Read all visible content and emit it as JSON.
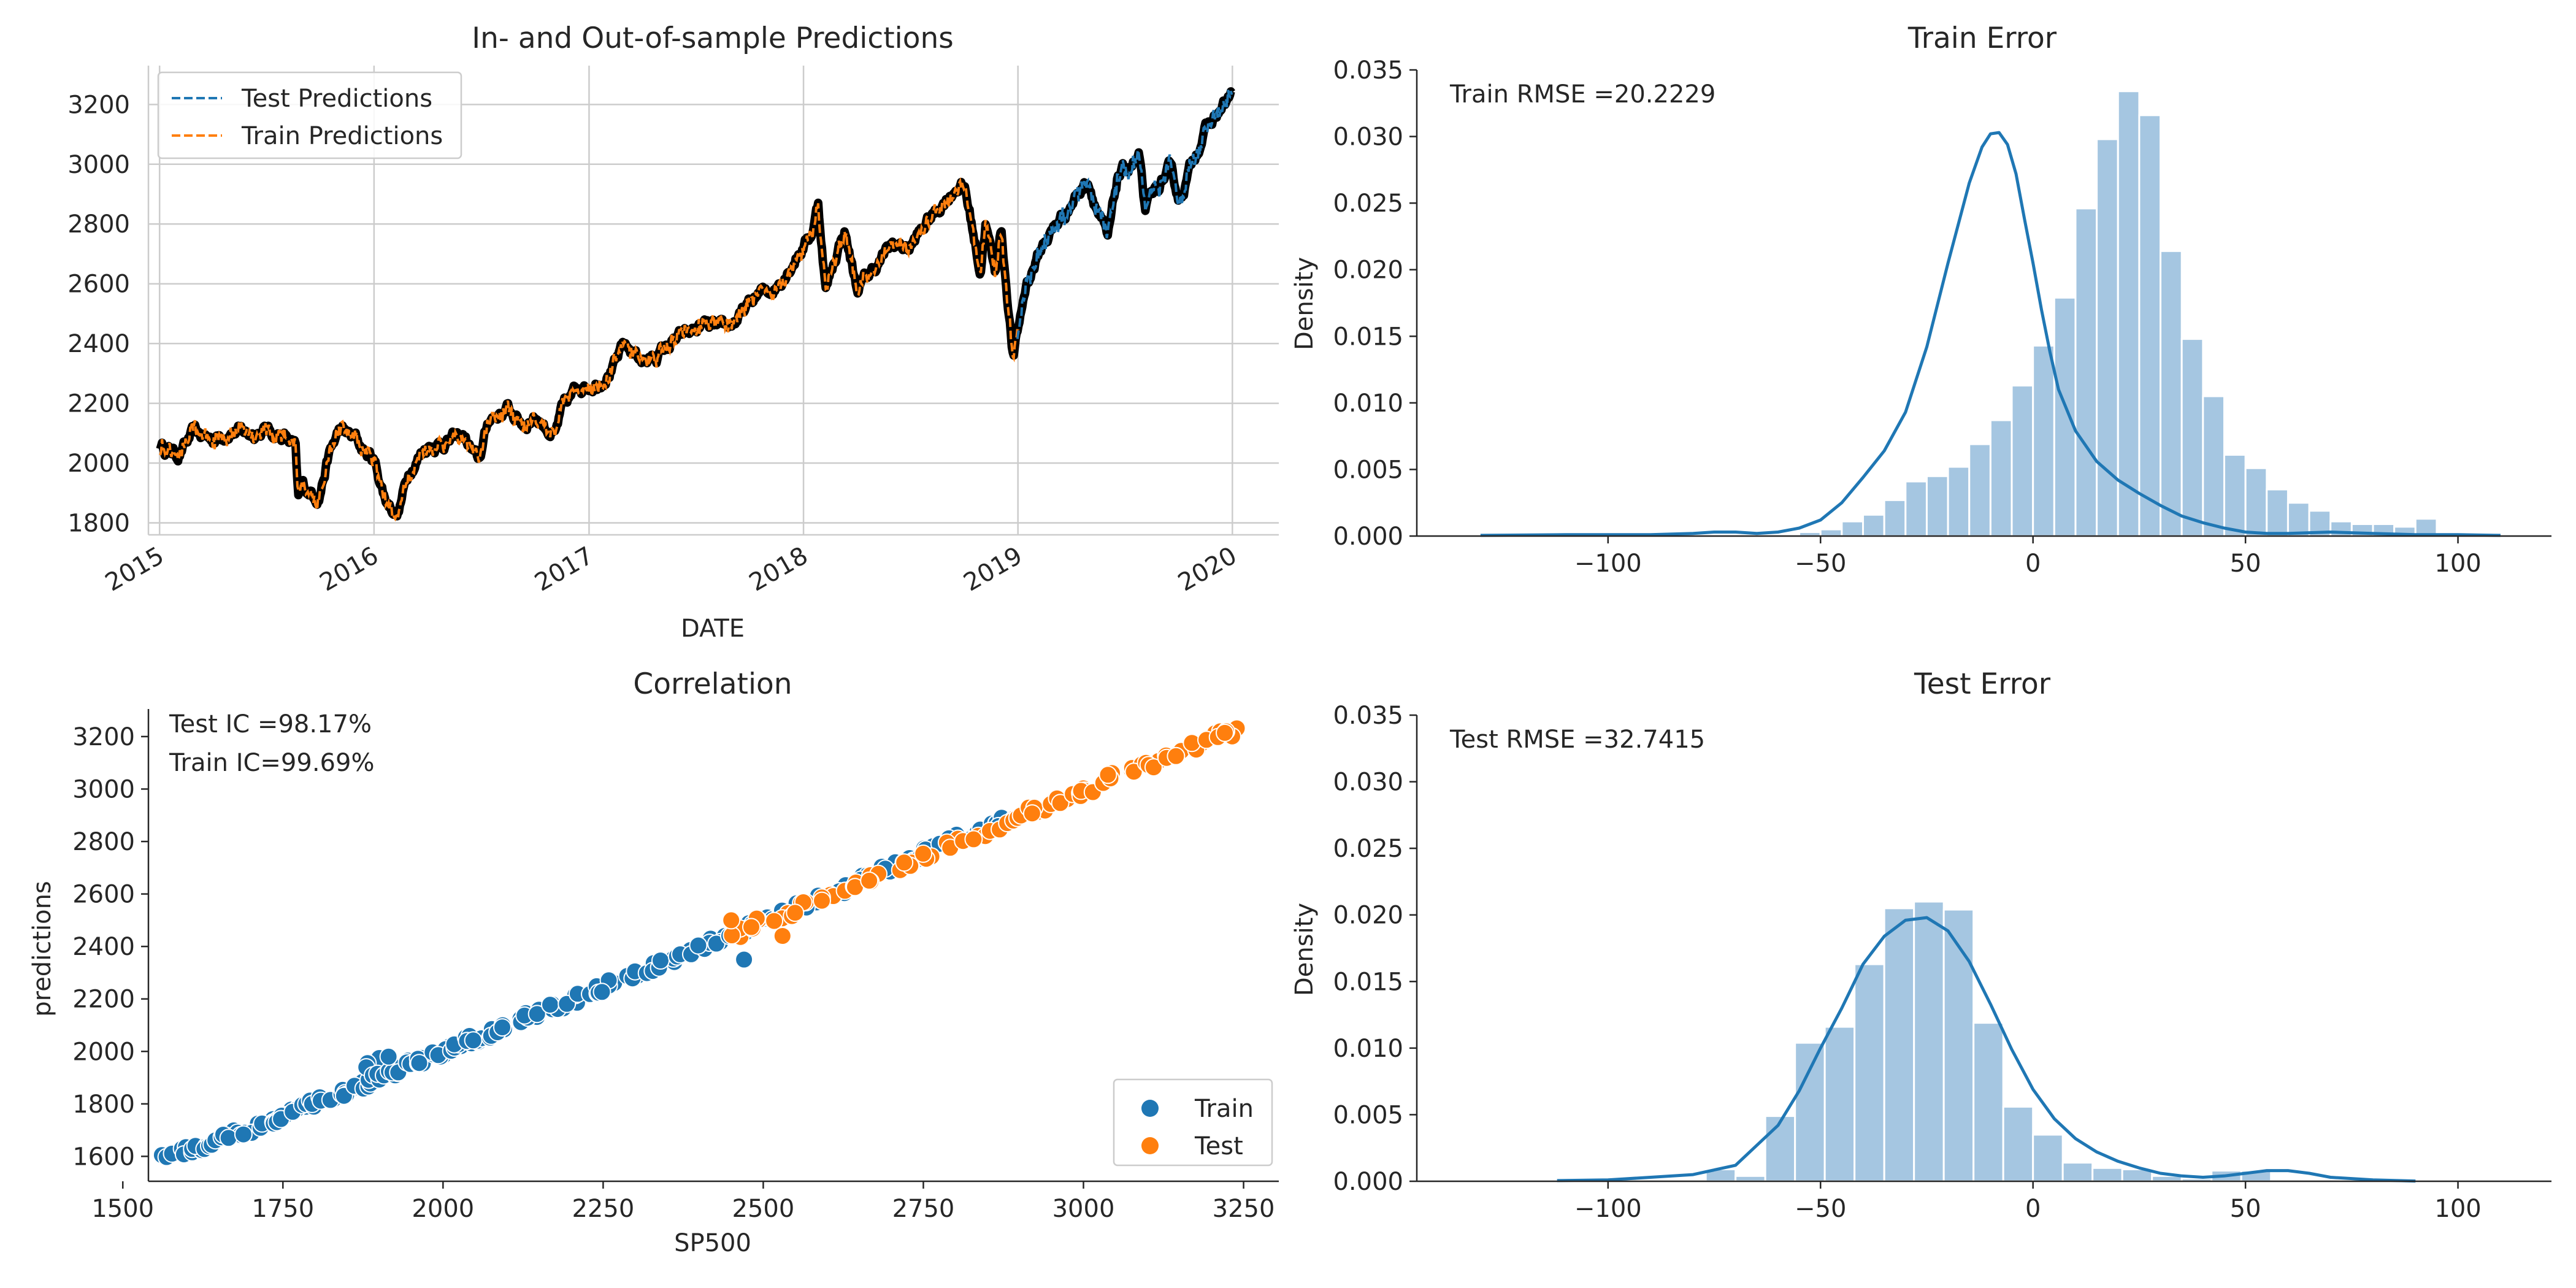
{
  "chart_data": [
    {
      "type": "line",
      "title": "In- and Out-of-sample Predictions",
      "xlabel": "DATE",
      "ylabel": "",
      "x_range": [
        "2015-01-02",
        "2019-12-31"
      ],
      "ylim": [
        1760,
        3330
      ],
      "xticks": [
        "2015",
        "2016",
        "2017",
        "2018",
        "2019",
        "2020"
      ],
      "yticks": [
        1800,
        2000,
        2200,
        2400,
        2600,
        2800,
        3000,
        3200
      ],
      "grid": true,
      "legend_position": "top-left",
      "test_start": "2019-01-02",
      "series": [
        {
          "name": "Test Predictions",
          "color": "#1f77b4",
          "style": "dashed"
        },
        {
          "name": "Train Predictions",
          "color": "#ff7f0e",
          "style": "dashed"
        }
      ],
      "actual": {
        "color": "#000000",
        "x": [
          "2015-01-02",
          "2015-02-01",
          "2015-03-01",
          "2015-04-01",
          "2015-05-01",
          "2015-06-01",
          "2015-07-01",
          "2015-08-01",
          "2015-08-20",
          "2015-08-25",
          "2015-09-01",
          "2015-09-29",
          "2015-10-15",
          "2015-11-03",
          "2015-12-01",
          "2015-12-15",
          "2016-01-01",
          "2016-01-20",
          "2016-02-11",
          "2016-03-01",
          "2016-04-01",
          "2016-05-01",
          "2016-06-01",
          "2016-06-27",
          "2016-07-15",
          "2016-08-15",
          "2016-09-12",
          "2016-10-01",
          "2016-11-04",
          "2016-11-15",
          "2016-12-15",
          "2017-01-15",
          "2017-02-15",
          "2017-03-01",
          "2017-04-13",
          "2017-05-15",
          "2017-06-15",
          "2017-07-15",
          "2017-08-15",
          "2017-09-15",
          "2017-10-15",
          "2017-11-15",
          "2017-12-15",
          "2018-01-15",
          "2018-01-26",
          "2018-02-08",
          "2018-03-01",
          "2018-03-12",
          "2018-04-02",
          "2018-05-01",
          "2018-06-01",
          "2018-07-01",
          "2018-08-01",
          "2018-09-20",
          "2018-10-03",
          "2018-10-29",
          "2018-11-07",
          "2018-11-23",
          "2018-12-03",
          "2018-12-24",
          "2019-01-15",
          "2019-02-15",
          "2019-03-15",
          "2019-04-30",
          "2019-05-15",
          "2019-06-03",
          "2019-06-20",
          "2019-07-26",
          "2019-08-05",
          "2019-08-15",
          "2019-09-15",
          "2019-10-03",
          "2019-10-30",
          "2019-11-15",
          "2019-12-31"
        ],
        "y": [
          2058,
          2030,
          2100,
          2080,
          2110,
          2100,
          2110,
          2090,
          2050,
          1870,
          1920,
          1890,
          2020,
          2110,
          2080,
          2040,
          2010,
          1880,
          1830,
          1980,
          2060,
          2070,
          2090,
          2000,
          2150,
          2180,
          2130,
          2160,
          2090,
          2170,
          2260,
          2270,
          2330,
          2390,
          2340,
          2390,
          2430,
          2460,
          2440,
          2490,
          2560,
          2590,
          2680,
          2770,
          2870,
          2580,
          2720,
          2780,
          2580,
          2650,
          2730,
          2720,
          2810,
          2930,
          2920,
          2640,
          2810,
          2630,
          2790,
          2350,
          2600,
          2740,
          2820,
          2950,
          2860,
          2740,
          2960,
          3020,
          2840,
          2880,
          2980,
          2880,
          3040,
          3110,
          3230
        ]
      },
      "test_prediction_color": "#1f77b4",
      "train_prediction_color": "#ff7f0e"
    },
    {
      "type": "histogram",
      "title": "Train Error",
      "xlabel": "",
      "ylabel": "Density",
      "xlim": [
        -145,
        122
      ],
      "ylim": [
        0,
        0.035
      ],
      "xticks": [
        -100,
        -50,
        0,
        50,
        100
      ],
      "yticks": [
        "0.000",
        "0.005",
        "0.010",
        "0.015",
        "0.020",
        "0.025",
        "0.030",
        "0.035"
      ],
      "annotation": "Train RMSE =20.2229",
      "bin_width": 5,
      "bins_start": -55,
      "densities": [
        0.0003,
        0.0005,
        0.0011,
        0.0016,
        0.0027,
        0.0041,
        0.0045,
        0.0052,
        0.0069,
        0.0087,
        0.0113,
        0.0143,
        0.0179,
        0.0246,
        0.0298,
        0.0334,
        0.0316,
        0.0214,
        0.0148,
        0.0105,
        0.0061,
        0.0051,
        0.0035,
        0.0025,
        0.0019,
        0.0011,
        0.0009,
        0.0009,
        0.0007,
        0.0013
      ],
      "kde": {
        "color": "#1f77b4",
        "x": [
          -130,
          -110,
          -90,
          -80,
          -75,
          -70,
          -65,
          -60,
          -55,
          -50,
          -45,
          -40,
          -35,
          -30,
          -25,
          -20,
          -15,
          -12,
          -10,
          -8,
          -6,
          -4,
          -2,
          0,
          2,
          4,
          6,
          10,
          15,
          20,
          25,
          30,
          35,
          40,
          45,
          50,
          55,
          60,
          70,
          80,
          90,
          100,
          110
        ],
        "y": [
          5e-05,
          0.0001,
          0.0001,
          0.0002,
          0.0003,
          0.0003,
          0.0002,
          0.0003,
          0.0006,
          0.0012,
          0.0025,
          0.0044,
          0.0064,
          0.0093,
          0.0142,
          0.0205,
          0.0265,
          0.0292,
          0.0302,
          0.0303,
          0.0294,
          0.0272,
          0.0238,
          0.0205,
          0.017,
          0.0138,
          0.011,
          0.0079,
          0.0056,
          0.0042,
          0.0032,
          0.0023,
          0.0015,
          0.001,
          0.0006,
          0.0003,
          0.0002,
          0.0002,
          0.0003,
          0.0002,
          0.0001,
          0.0001,
          5e-05
        ]
      }
    },
    {
      "type": "scatter",
      "title": "Correlation",
      "xlabel": "SP500",
      "ylabel": "predictions",
      "xlim": [
        1540,
        3305
      ],
      "ylim": [
        1505,
        3305
      ],
      "xticks": [
        1500,
        1750,
        2000,
        2250,
        2500,
        2750,
        3000,
        3250
      ],
      "yticks": [
        1600,
        1800,
        2000,
        2200,
        2400,
        2600,
        2800,
        3000,
        3200
      ],
      "legend_position": "lower-right",
      "annotations": [
        "Test IC =98.17%",
        "Train IC=99.69%"
      ],
      "series": [
        {
          "name": "Train",
          "color": "#1f77b4",
          "x": [
            1575,
            1590,
            1610,
            1625,
            1640,
            1660,
            1680,
            1700,
            1720,
            1745,
            1760,
            1780,
            1800,
            1820,
            1840,
            1860,
            1880,
            1890,
            1900,
            1915,
            1930,
            1945,
            1960,
            1975,
            1990,
            2005,
            2020,
            2040,
            2060,
            2080,
            2100,
            2120,
            2140,
            2160,
            2180,
            2200,
            2230,
            2260,
            2290,
            2320,
            2350,
            2380,
            2410,
            2440,
            2470,
            2500,
            2540,
            2580,
            2620,
            2660,
            2700,
            2730,
            2760,
            2790,
            2820,
            2850,
            2880
          ],
          "y": [
            1600,
            1610,
            1615,
            1635,
            1650,
            1670,
            1690,
            1700,
            1715,
            1745,
            1765,
            1790,
            1805,
            1820,
            1835,
            1860,
            1880,
            1950,
            1900,
            1920,
            1930,
            1950,
            1965,
            1975,
            1990,
            2005,
            2020,
            2040,
            2055,
            2075,
            2095,
            2115,
            2140,
            2155,
            2175,
            2195,
            2225,
            2255,
            2285,
            2315,
            2345,
            2375,
            2405,
            2435,
            2465,
            2505,
            2540,
            2575,
            2615,
            2660,
            2700,
            2730,
            2765,
            2800,
            2820,
            2850,
            2880
          ]
        },
        {
          "name": "Test",
          "color": "#ff7f0e",
          "x": [
            2450,
            2490,
            2530,
            2560,
            2600,
            2640,
            2680,
            2720,
            2760,
            2800,
            2840,
            2880,
            2900,
            2930,
            2960,
            2990,
            3010,
            3040,
            3080,
            3110,
            3140,
            3170,
            3200,
            3230
          ],
          "y": [
            2440,
            2490,
            2520,
            2550,
            2590,
            2630,
            2670,
            2710,
            2750,
            2790,
            2830,
            2870,
            2900,
            2920,
            2950,
            2980,
            3000,
            3040,
            3070,
            3100,
            3130,
            3160,
            3190,
            3210
          ]
        }
      ],
      "extra_points": [
        {
          "series": "Train",
          "x": 2470,
          "y": 2350
        },
        {
          "series": "Train",
          "x": 1915,
          "y": 1980
        },
        {
          "series": "Test",
          "x": 2530,
          "y": 2440
        },
        {
          "series": "Test",
          "x": 2450,
          "y": 2500
        }
      ]
    },
    {
      "type": "histogram",
      "title": "Test Error",
      "xlabel": "",
      "ylabel": "Density",
      "xlim": [
        -145,
        122
      ],
      "ylim": [
        0,
        0.035
      ],
      "xticks": [
        -100,
        -50,
        0,
        50,
        100
      ],
      "yticks": [
        "0.000",
        "0.005",
        "0.010",
        "0.015",
        "0.020",
        "0.025",
        "0.030",
        "0.035"
      ],
      "annotation": "Test RMSE =32.7415",
      "bin_width": 7,
      "bins_start": -77,
      "densities": [
        0.0009,
        0.0004,
        0.0049,
        0.0104,
        0.0116,
        0.0163,
        0.0205,
        0.021,
        0.0204,
        0.0119,
        0.0056,
        0.0035,
        0.0014,
        0.001,
        0.0009,
        0.0004,
        0.0002,
        0.0008,
        0.0008
      ],
      "kde": {
        "color": "#1f77b4",
        "x": [
          -112,
          -100,
          -90,
          -80,
          -70,
          -60,
          -55,
          -50,
          -45,
          -40,
          -35,
          -30,
          -25,
          -20,
          -15,
          -10,
          -5,
          0,
          5,
          10,
          15,
          20,
          25,
          30,
          35,
          40,
          45,
          50,
          55,
          60,
          65,
          70,
          80,
          90
        ],
        "y": [
          5e-05,
          0.0001,
          0.0003,
          0.0005,
          0.0012,
          0.0042,
          0.0068,
          0.01,
          0.013,
          0.0163,
          0.0184,
          0.0196,
          0.0198,
          0.0188,
          0.0165,
          0.0133,
          0.0099,
          0.0069,
          0.0047,
          0.0032,
          0.0022,
          0.0015,
          0.001,
          0.0006,
          0.0004,
          0.0003,
          0.0004,
          0.0006,
          0.0008,
          0.0008,
          0.0006,
          0.0003,
          0.0001,
          2e-05
        ]
      }
    }
  ]
}
